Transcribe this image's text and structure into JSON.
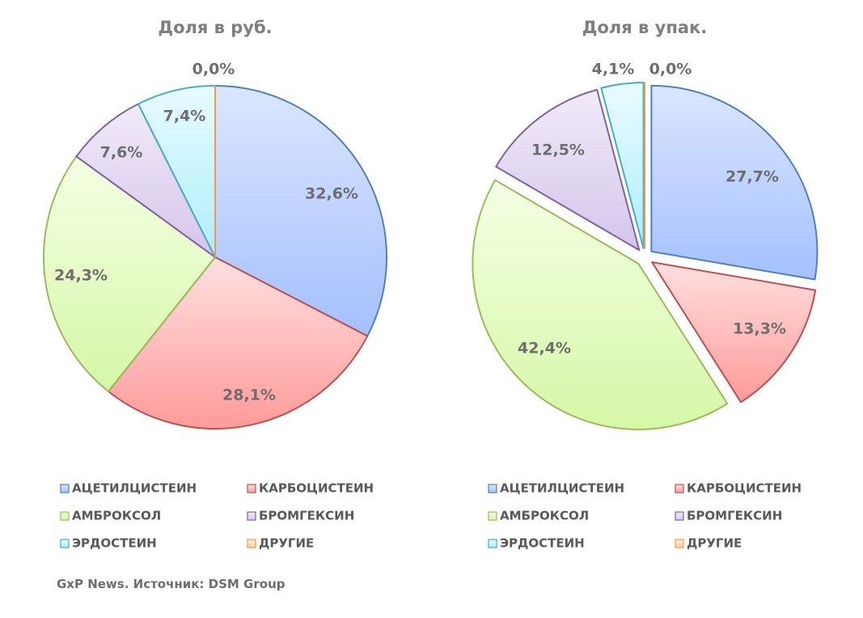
{
  "source": "GxP News. Источник: DSM Group",
  "categories": [
    {
      "name": "АЦЕТИЛЦИСТЕИН",
      "color": "#4f81bd",
      "light": "#dbe6ff",
      "dark": "#a4c0ff"
    },
    {
      "name": "КАРБОЦИСТЕИН",
      "color": "#c0504d",
      "light": "#ffe0e0",
      "dark": "#ff9a9a"
    },
    {
      "name": "АМБРОКСОЛ",
      "color": "#9bbb59",
      "light": "#f4ffe4",
      "dark": "#d6f7a7"
    },
    {
      "name": "БРОМГЕКСИН",
      "color": "#8064a2",
      "light": "#f1ebf8",
      "dark": "#d4c5ec"
    },
    {
      "name": "ЭРДОСТЕИН",
      "color": "#4bacc6",
      "light": "#e8fbff",
      "dark": "#aeeefb"
    },
    {
      "name": "ДРУГИЕ",
      "color": "#f79646",
      "light": "#fff0e0",
      "dark": "#ffd0a0"
    }
  ],
  "chart_data": [
    {
      "type": "pie",
      "title": "Доля в руб.",
      "categories": [
        "АЦЕТИЛЦИСТЕИН",
        "КАРБОЦИСТЕИН",
        "АМБРОКСОЛ",
        "БРОМГЕКСИН",
        "ЭРДОСТЕИН",
        "ДРУГИЕ"
      ],
      "values": [
        32.6,
        28.1,
        24.3,
        7.6,
        7.4,
        0.0
      ],
      "labels": [
        "32,6%",
        "28,1%",
        "24,3%",
        "7,6%",
        "7,4%",
        "0,0%"
      ],
      "exploded": false,
      "legend": "bottom"
    },
    {
      "type": "pie",
      "title": "Доля в упак.",
      "categories": [
        "АЦЕТИЛЦИСТЕИН",
        "КАРБОЦИСТЕИН",
        "АМБРОКСОЛ",
        "БРОМГЕКСИН",
        "ЭРДОСТЕИН",
        "ДРУГИЕ"
      ],
      "values": [
        27.7,
        13.3,
        42.4,
        12.5,
        4.1,
        0.0
      ],
      "labels": [
        "27,7%",
        "13,3%",
        "42,4%",
        "12,5%",
        "4,1%",
        "0,0%"
      ],
      "exploded": true,
      "legend": "bottom"
    }
  ]
}
